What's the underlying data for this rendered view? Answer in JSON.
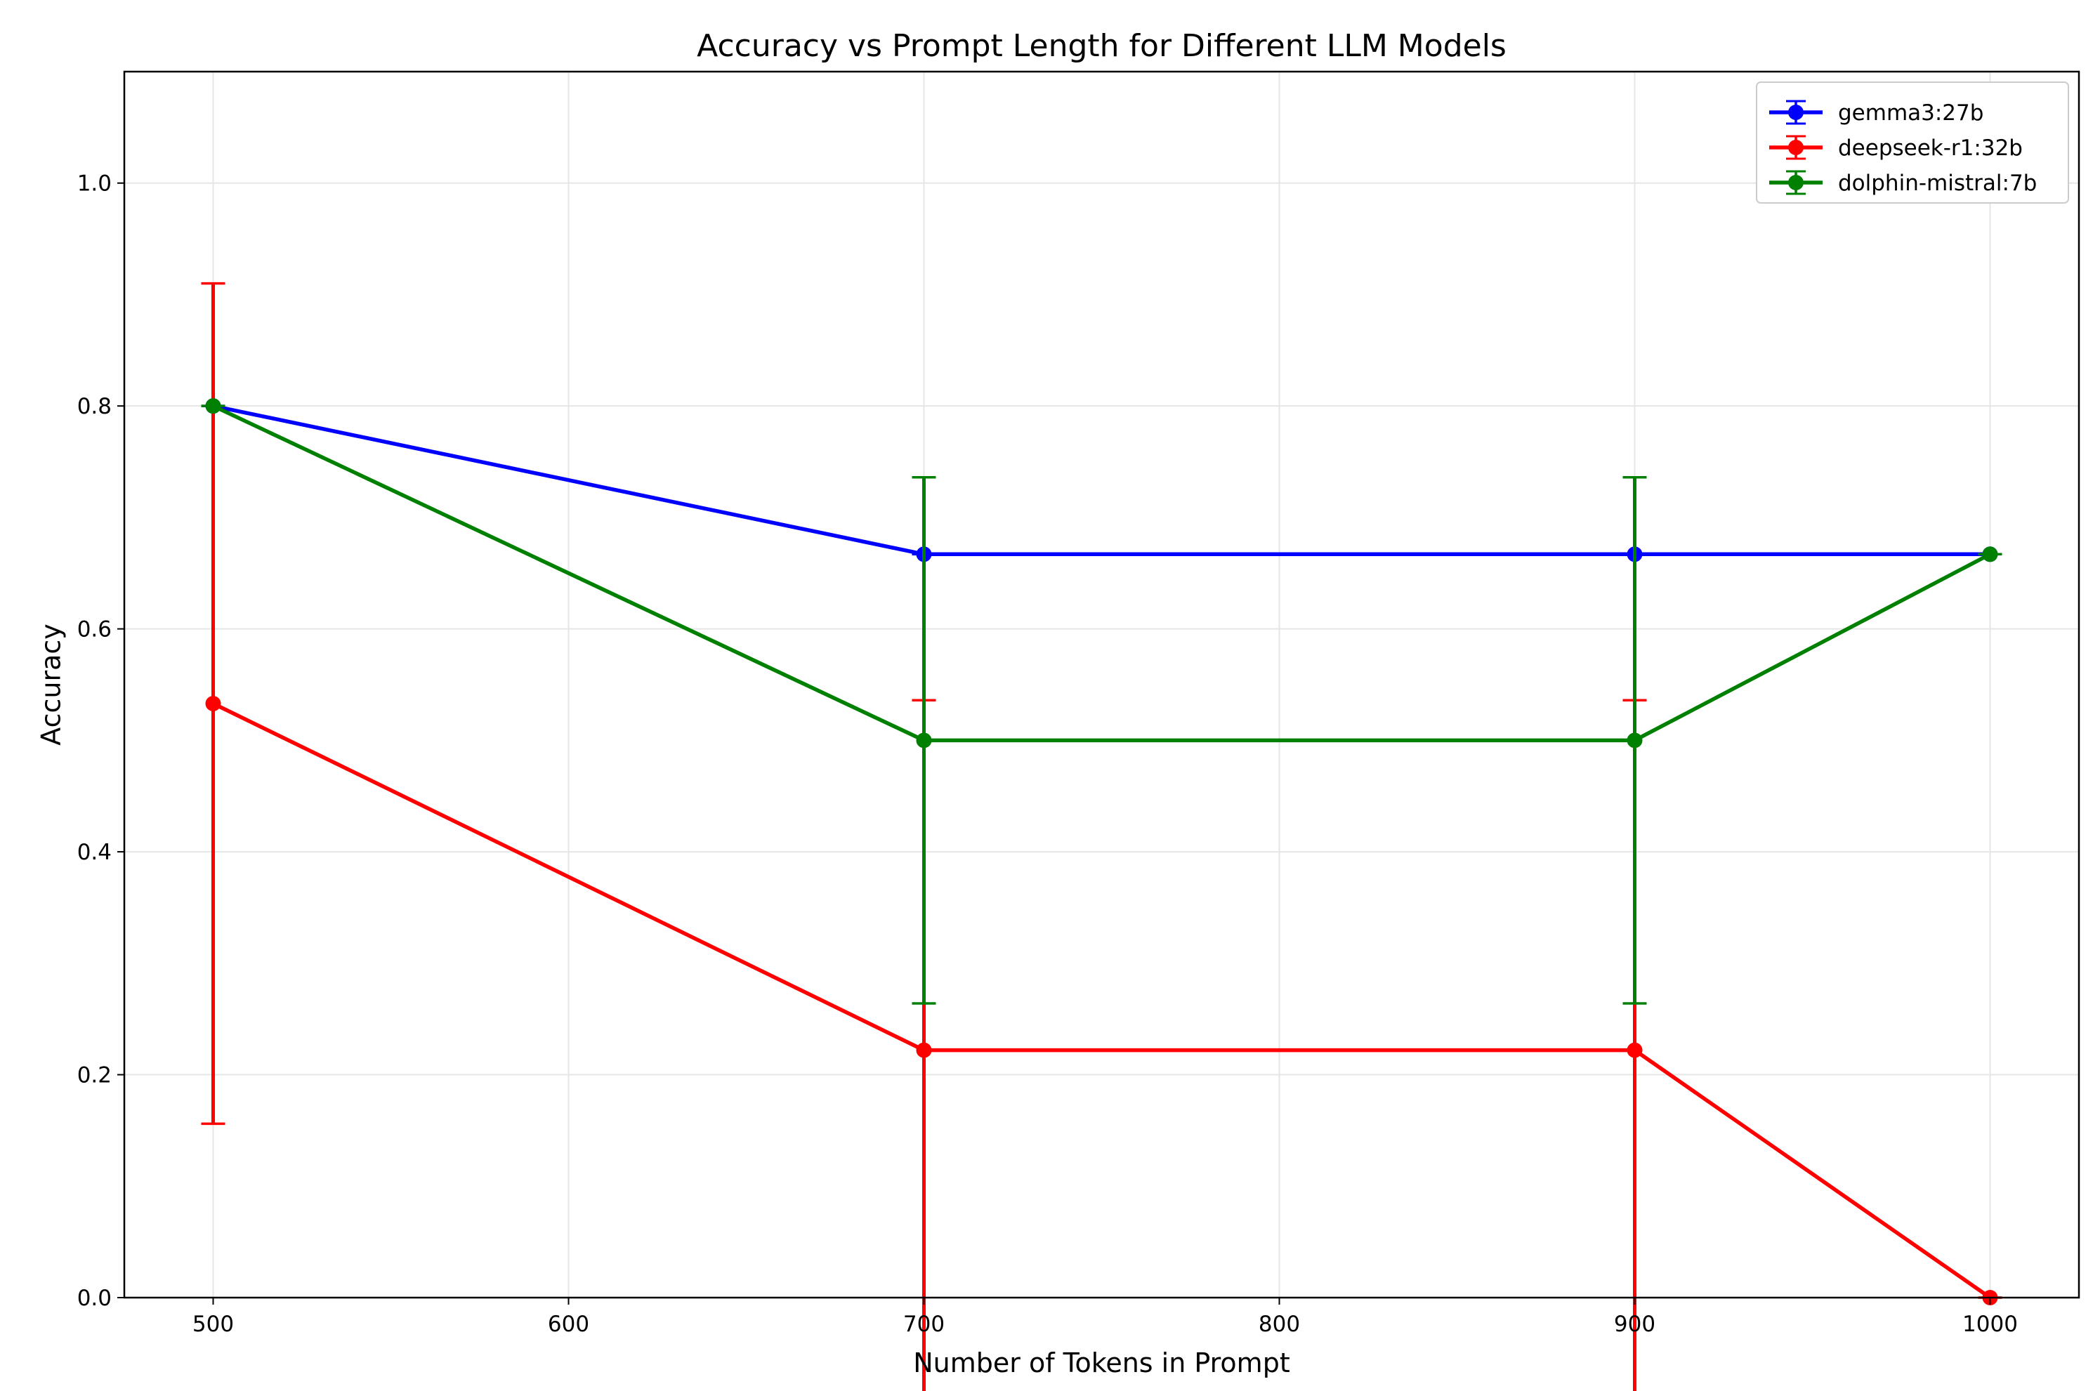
{
  "chart_data": {
    "type": "line",
    "title": "Accuracy vs Prompt Length for Different LLM Models",
    "xlabel": "Number of Tokens in Prompt",
    "ylabel": "Accuracy",
    "xlim": [
      475,
      1025
    ],
    "ylim": [
      0,
      1.1
    ],
    "xticks": [
      500,
      600,
      700,
      800,
      900,
      1000
    ],
    "yticks": [
      0.0,
      0.2,
      0.4,
      0.6,
      0.8,
      1.0
    ],
    "xtick_labels": [
      "500",
      "600",
      "700",
      "800",
      "900",
      "1000"
    ],
    "ytick_labels": [
      "0.0",
      "0.2",
      "0.4",
      "0.6",
      "0.8",
      "1.0"
    ],
    "grid": true,
    "legend_position": "top-right",
    "error_bars": true,
    "series": [
      {
        "name": "gemma3:27b",
        "color": "#0000ff",
        "x": [
          500,
          700,
          900,
          1000
        ],
        "y": [
          0.8,
          0.667,
          0.667,
          0.667
        ],
        "yerr": [
          0,
          0,
          0,
          0
        ]
      },
      {
        "name": "deepseek-r1:32b",
        "color": "#ff0000",
        "x": [
          500,
          700,
          900,
          1000
        ],
        "y": [
          0.533,
          0.222,
          0.222,
          0.0
        ],
        "yerr": [
          0.377,
          0.314,
          0.314,
          0
        ]
      },
      {
        "name": "dolphin-mistral:7b",
        "color": "#008000",
        "x": [
          500,
          700,
          900,
          1000
        ],
        "y": [
          0.8,
          0.5,
          0.5,
          0.667
        ],
        "yerr": [
          0,
          0.236,
          0.236,
          0
        ]
      }
    ]
  }
}
